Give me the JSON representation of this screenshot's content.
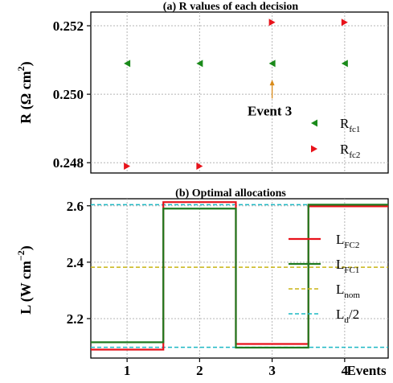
{
  "chart_data": [
    {
      "type": "scatter",
      "title": "(a) R values of each decision",
      "ylabel": "R (Ω cm",
      "ylabel_sup": "2",
      "ylabel_close": ")",
      "xlim": [
        0.5,
        4.6
      ],
      "ylim": [
        0.2477,
        0.2524
      ],
      "yticks": [
        "0.248",
        "0.250",
        "0.252"
      ],
      "grid": true,
      "legend_position": "bottom-right",
      "series": [
        {
          "base": "R",
          "sub": "fc1",
          "marker": "left-triangle",
          "color": "#1a8a1a",
          "x": [
            1,
            2,
            3,
            4
          ],
          "y": [
            0.2509,
            0.2509,
            0.2509,
            0.2509
          ]
        },
        {
          "base": "R",
          "sub": "fc2",
          "marker": "right-triangle",
          "color": "#e8121a",
          "x": [
            1,
            2,
            3,
            4
          ],
          "y": [
            0.2479,
            0.2479,
            0.2521,
            0.2521
          ]
        }
      ],
      "annotation": {
        "text": "Event 3",
        "x": 3,
        "y": 0.2495,
        "arrow_to_y": 0.2504,
        "color": "#d98b1a"
      }
    },
    {
      "type": "line",
      "title": "(b) Optimal allocations",
      "ylabel": "L (W cm",
      "ylabel_sup": "−2",
      "ylabel_close": ")",
      "xlabel": "Events",
      "xticks": [
        "1",
        "2",
        "3",
        "4"
      ],
      "yticks": [
        "2.2",
        "2.4",
        "2.6"
      ],
      "xlim": [
        0.5,
        4.6
      ],
      "ylim": [
        2.06,
        2.625
      ],
      "grid": true,
      "legend_position": "right",
      "step_edges": [
        0.5,
        1.5,
        2.5,
        3.5,
        4.6
      ],
      "series": [
        {
          "base": "L",
          "sub": "FC2",
          "color": "#e8121a",
          "style": "solid",
          "values": [
            2.09,
            2.613,
            2.11,
            2.598
          ]
        },
        {
          "base": "L",
          "sub": "FC1",
          "color": "#1f7a1f",
          "style": "solid",
          "values": [
            2.116,
            2.59,
            2.097,
            2.604
          ]
        },
        {
          "base": "L",
          "sub": "nom",
          "color": "#c8b414",
          "style": "dashed",
          "values": [
            2.382
          ]
        },
        {
          "base": "L",
          "sub": "d",
          "suffix": "/2",
          "color": "#1cb8c4",
          "style": "dashed",
          "values": [
            2.604
          ]
        },
        {
          "color": "#1cb8c4",
          "style": "dashed",
          "values": [
            2.098
          ]
        }
      ]
    }
  ]
}
